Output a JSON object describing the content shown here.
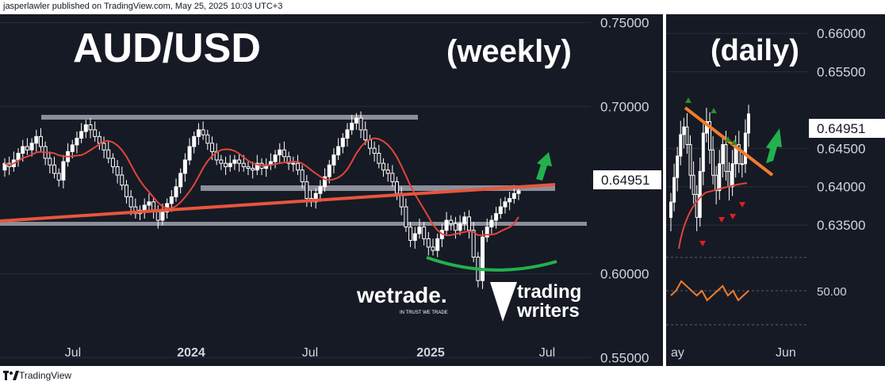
{
  "header": {
    "publisher_line": "jasperlawler published on TradingView.com, May 25, 2025 10:03 UTC+3"
  },
  "footer": {
    "brand": "TradingView"
  },
  "colors": {
    "background": "#161a25",
    "candle": "#ffffff",
    "ma": "#e0453a",
    "trendline": "#e8553d",
    "level": "#8c8f99",
    "green_arrow": "#22b14c",
    "orange_line": "#f07d2a",
    "red_marker": "#e02020",
    "green_marker": "#2e8b2e"
  },
  "chart_data": [
    {
      "type": "candlestick",
      "title": "AUD/USD",
      "subtitle": "(weekly)",
      "price_axis": {
        "ticks": [
          "0.75000",
          "0.70000",
          "0.60000",
          "0.55000"
        ],
        "ylim": [
          0.545,
          0.755
        ]
      },
      "last_price_label": "0.64951",
      "last_price": 0.64951,
      "x_ticks": [
        "Jul",
        "2024",
        "Jul",
        "2025",
        "Jul"
      ],
      "closes": [
        0.666,
        0.664,
        0.668,
        0.672,
        0.676,
        0.674,
        0.678,
        0.682,
        0.676,
        0.669,
        0.665,
        0.66,
        0.656,
        0.667,
        0.673,
        0.677,
        0.681,
        0.685,
        0.689,
        0.686,
        0.682,
        0.678,
        0.674,
        0.669,
        0.664,
        0.659,
        0.653,
        0.646,
        0.64,
        0.636,
        0.638,
        0.641,
        0.643,
        0.637,
        0.632,
        0.637,
        0.642,
        0.646,
        0.652,
        0.66,
        0.668,
        0.676,
        0.682,
        0.686,
        0.683,
        0.678,
        0.673,
        0.668,
        0.666,
        0.664,
        0.666,
        0.668,
        0.666,
        0.664,
        0.663,
        0.662,
        0.666,
        0.663,
        0.665,
        0.667,
        0.671,
        0.674,
        0.67,
        0.666,
        0.666,
        0.662,
        0.655,
        0.645,
        0.643,
        0.648,
        0.652,
        0.658,
        0.665,
        0.671,
        0.676,
        0.681,
        0.686,
        0.69,
        0.693,
        0.686,
        0.68,
        0.675,
        0.672,
        0.666,
        0.662,
        0.66,
        0.655,
        0.648,
        0.64,
        0.628,
        0.62,
        0.624,
        0.628,
        0.621,
        0.616,
        0.614,
        0.621,
        0.626,
        0.632,
        0.63,
        0.626,
        0.63,
        0.634,
        0.626,
        0.61,
        0.596,
        0.622,
        0.628,
        0.632,
        0.636,
        0.64,
        0.643,
        0.645,
        0.648,
        0.6495
      ],
      "moving_average_color": "#e0453a",
      "annotations": {
        "logo_1": "wetrade.",
        "logo_1_tag": "IN TRUST WE TRADE",
        "logo_2_line1": "trading",
        "logo_2_line2": "writers"
      }
    },
    {
      "type": "candlestick",
      "subtitle": "(daily)",
      "price_axis": {
        "ticks": [
          "0.66000",
          "0.65500",
          "0.64500",
          "0.64000",
          "0.63500"
        ],
        "ylim": [
          0.6315,
          0.6625
        ]
      },
      "last_price_label": "0.64951",
      "last_price": 0.64951,
      "x_ticks": [
        "ay",
        "Jun"
      ],
      "closes": [
        0.638,
        0.6412,
        0.644,
        0.6468,
        0.6478,
        0.6455,
        0.6415,
        0.639,
        0.636,
        0.642,
        0.647,
        0.6485,
        0.6448,
        0.6415,
        0.6395,
        0.643,
        0.6455,
        0.642,
        0.64,
        0.643,
        0.6455,
        0.643,
        0.643,
        0.647,
        0.6495
      ],
      "indicator": {
        "tick": "50.00",
        "values": [
          49,
          50,
          52,
          51,
          50,
          49,
          50,
          48,
          49,
          50,
          51,
          49,
          50,
          48,
          49,
          50
        ]
      }
    }
  ]
}
